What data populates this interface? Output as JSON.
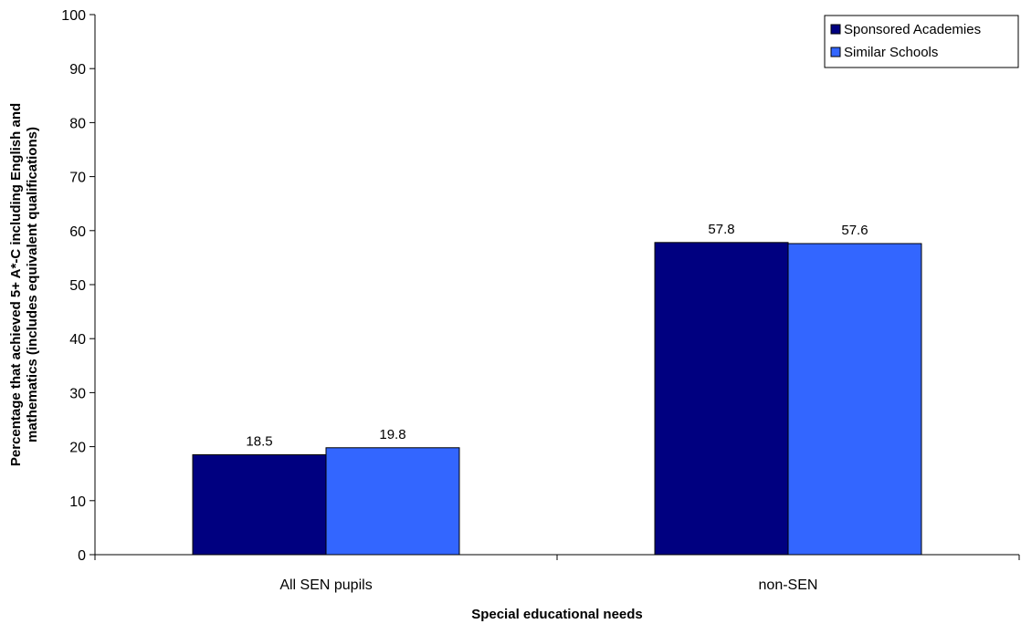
{
  "chart_data": {
    "type": "bar",
    "title": "",
    "xlabel": "Special educational needs",
    "ylabel_lines": [
      "Percentage that achieved 5+  A*-C including English and",
      "mathematics (includes equivalent qualifications)"
    ],
    "ylim": [
      0,
      100
    ],
    "yticks": [
      0,
      10,
      20,
      30,
      40,
      50,
      60,
      70,
      80,
      90,
      100
    ],
    "grid": false,
    "legend_position": "top-right",
    "categories": [
      "All SEN pupils",
      "non-SEN"
    ],
    "series": [
      {
        "name": "Sponsored Academies",
        "color": "#000080",
        "values": [
          18.5,
          57.8
        ]
      },
      {
        "name": "Similar Schools",
        "color": "#3366FF",
        "values": [
          19.8,
          57.6
        ]
      }
    ]
  }
}
